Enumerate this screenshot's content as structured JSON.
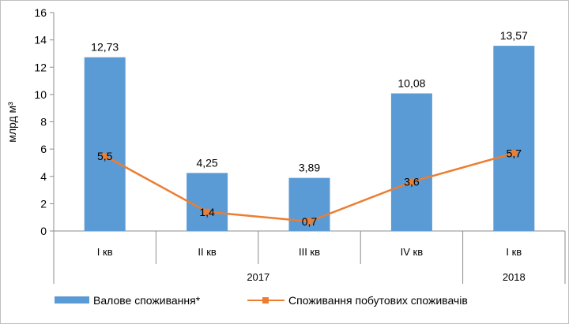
{
  "chart_data": {
    "type": "bar+line",
    "title": "",
    "ylabel": "млрд м³",
    "ylim": [
      0,
      16
    ],
    "yticks": [
      0,
      2,
      4,
      6,
      8,
      10,
      12,
      14,
      16
    ],
    "categories": [
      "I кв",
      "II кв",
      "III кв",
      "IV кв",
      "I кв"
    ],
    "groups": [
      {
        "label": "2017",
        "span": 4
      },
      {
        "label": "2018",
        "span": 1
      }
    ],
    "series": [
      {
        "name": "Валове споживання*",
        "type": "bar",
        "color": "#5B9BD5",
        "values": [
          12.73,
          4.25,
          3.89,
          10.08,
          13.57
        ],
        "labels": [
          "12,73",
          "4,25",
          "3,89",
          "10,08",
          "13,57"
        ]
      },
      {
        "name": "Споживання побутових споживачів",
        "type": "line",
        "color": "#ED7D31",
        "values": [
          5.5,
          1.4,
          0.7,
          3.6,
          5.7
        ],
        "labels": [
          "5,5",
          "1,4",
          "0,7",
          "3,6",
          "5,7"
        ]
      }
    ],
    "grid": false,
    "legend": "bottom"
  }
}
